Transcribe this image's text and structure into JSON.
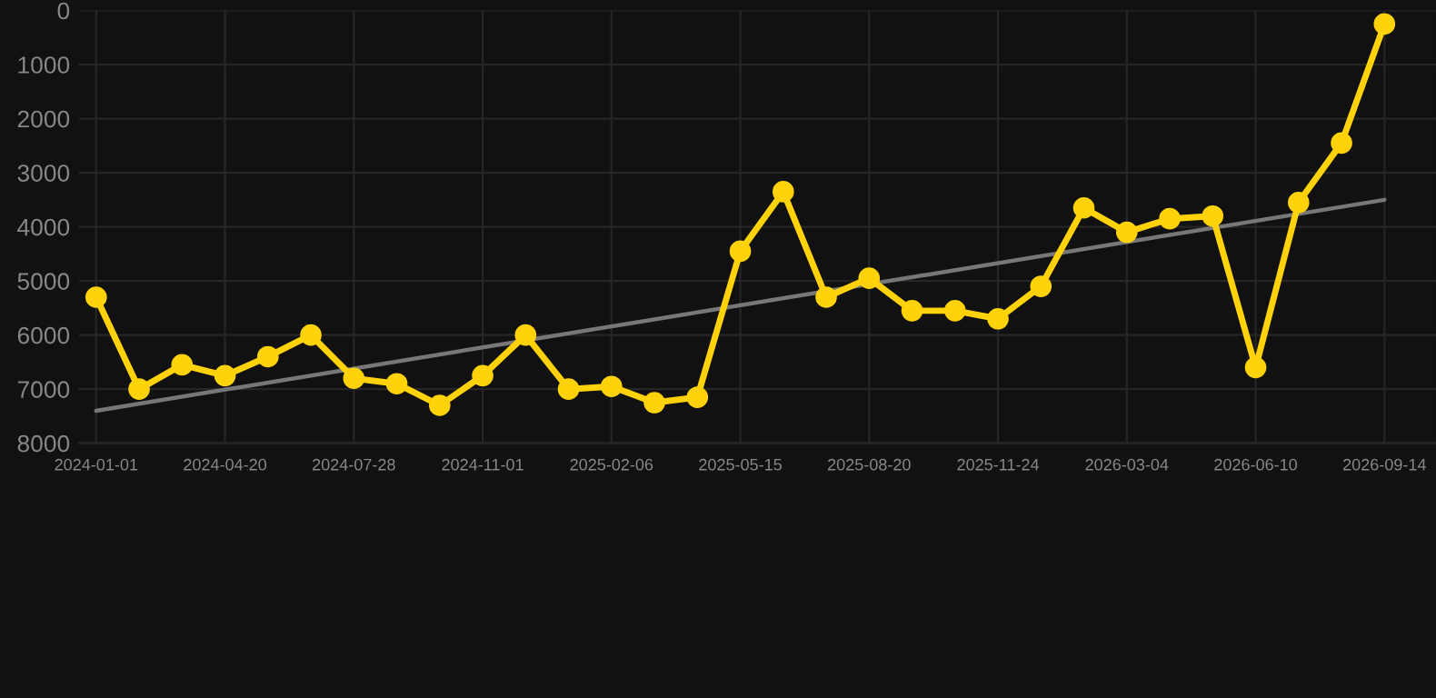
{
  "chart_data": {
    "type": "line",
    "categories": [
      "2024-01-01",
      null,
      null,
      "2024-04-20",
      null,
      null,
      "2024-07-28",
      null,
      null,
      "2024-11-01",
      null,
      null,
      "2025-02-06",
      null,
      null,
      "2025-05-15",
      null,
      null,
      "2025-08-20",
      null,
      null,
      "2025-11-24",
      null,
      null,
      "2026-03-04",
      null,
      null,
      "2026-06-10",
      null,
      null,
      "2026-09-14"
    ],
    "series": [
      {
        "color": "#ffd20a",
        "marker": "circle",
        "values": [
          5300,
          7000,
          6550,
          6750,
          6400,
          6000,
          6800,
          6900,
          7300,
          6750,
          6000,
          7000,
          6950,
          7250,
          7150,
          4450,
          3350,
          5300,
          4950,
          5550,
          5550,
          5700,
          5100,
          3650,
          4100,
          3850,
          3800,
          6600,
          3550,
          2450,
          250
        ]
      },
      {
        "type": "line",
        "color": "#777777",
        "marker": "none",
        "values": [
          7400,
          null,
          null,
          null,
          null,
          null,
          null,
          null,
          null,
          null,
          null,
          null,
          null,
          null,
          null,
          null,
          null,
          null,
          null,
          null,
          null,
          null,
          null,
          null,
          null,
          null,
          null,
          null,
          null,
          null,
          3500
        ]
      }
    ],
    "ylim": [
      8000,
      0
    ],
    "yticks": [
      0,
      1000,
      2000,
      3000,
      4000,
      5000,
      6000,
      7000,
      8000
    ],
    "grid": true,
    "line_style": "solid"
  }
}
